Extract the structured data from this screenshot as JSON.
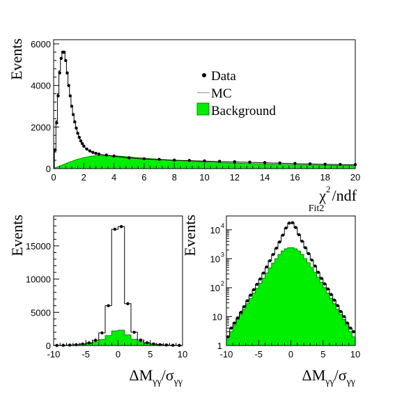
{
  "colors": {
    "background_fill": "#00ee00",
    "background_edge": "#008800",
    "data_marker": "#000000",
    "mc_line": "#000000",
    "frame": "#000000"
  },
  "chart_data": [
    {
      "type": "histogram",
      "id": "chi2",
      "ylabel": "Events",
      "xlabel_main": "χ",
      "xlabel_sup": "2",
      "xlabel_rest": "/ndf",
      "xlabel_sub": "Fit2",
      "xlim": [
        0,
        20
      ],
      "ylim": [
        0,
        6200
      ],
      "yscale": "linear",
      "x_ticks": [
        0,
        2,
        4,
        6,
        8,
        10,
        12,
        14,
        16,
        18,
        20
      ],
      "x_tick_labels": [
        "0",
        "2",
        "4",
        "6",
        "8",
        "10",
        "12",
        "14",
        "16",
        "18",
        "20"
      ],
      "y_ticks": [
        0,
        2000,
        4000,
        6000
      ],
      "y_tick_labels": [
        "0",
        "2000",
        "4000",
        "6000"
      ],
      "legend": {
        "position": "top-right",
        "entries": [
          {
            "label": "Data",
            "marker": "dot"
          },
          {
            "label": "MC",
            "marker": "line"
          },
          {
            "label": "Background",
            "marker": "box"
          }
        ]
      },
      "series": [
        {
          "name": "Data",
          "kind": "points",
          "x": [
            0.1,
            0.2,
            0.3,
            0.4,
            0.5,
            0.6,
            0.7,
            0.8,
            0.9,
            1.0,
            1.1,
            1.2,
            1.3,
            1.4,
            1.5,
            1.6,
            1.7,
            1.8,
            1.9,
            2.0,
            2.2,
            2.4,
            2.6,
            2.8,
            3.0,
            3.5,
            4.0,
            5.0,
            6.0,
            7.0,
            8.0,
            9.0,
            10.0,
            11.0,
            12.0,
            13.0,
            14.0,
            15.0,
            16.0,
            17.0,
            18.0,
            19.0,
            20.0
          ],
          "y": [
            900,
            2200,
            3500,
            4600,
            5300,
            5600,
            5600,
            5200,
            4600,
            4000,
            3500,
            3000,
            2600,
            2250,
            1950,
            1700,
            1500,
            1330,
            1200,
            1080,
            940,
            850,
            780,
            730,
            700,
            650,
            600,
            520,
            470,
            440,
            410,
            390,
            370,
            350,
            330,
            310,
            290,
            270,
            250,
            230,
            210,
            200,
            190
          ]
        },
        {
          "name": "MC",
          "kind": "step",
          "x": [
            0.1,
            0.2,
            0.3,
            0.4,
            0.5,
            0.6,
            0.7,
            0.8,
            0.9,
            1.0,
            1.1,
            1.2,
            1.3,
            1.4,
            1.5,
            1.6,
            1.7,
            1.8,
            1.9,
            2.0,
            2.2,
            2.4,
            2.6,
            2.8,
            3.0,
            3.5,
            4.0,
            5.0,
            6.0,
            7.0,
            8.0,
            9.0,
            10.0,
            11.0,
            12.0,
            13.0,
            14.0,
            15.0,
            16.0,
            17.0,
            18.0,
            19.0,
            20.0
          ],
          "y": [
            950,
            2300,
            3600,
            4700,
            5350,
            5650,
            5600,
            5150,
            4550,
            3950,
            3450,
            2950,
            2550,
            2200,
            1900,
            1680,
            1480,
            1310,
            1180,
            1060,
            930,
            840,
            770,
            720,
            690,
            640,
            590,
            510,
            460,
            430,
            400,
            380,
            360,
            340,
            320,
            300,
            280,
            260,
            240,
            220,
            205,
            195,
            185
          ]
        },
        {
          "name": "Background",
          "kind": "fill",
          "x": [
            0.0,
            0.5,
            1.0,
            1.5,
            2.0,
            2.5,
            3.0,
            3.5,
            4.0,
            5.0,
            6.0,
            7.0,
            8.0,
            9.0,
            10.0,
            11.0,
            12.0,
            13.0,
            14.0,
            15.0,
            16.0,
            17.0,
            18.0,
            19.0,
            20.0
          ],
          "y": [
            0,
            150,
            300,
            430,
            530,
            600,
            630,
            640,
            620,
            560,
            500,
            450,
            400,
            360,
            320,
            290,
            260,
            240,
            220,
            200,
            185,
            170,
            160,
            150,
            140
          ]
        }
      ]
    },
    {
      "type": "histogram",
      "id": "dm-linear",
      "ylabel": "Events",
      "xlabel_main": "ΔM",
      "xlabel_sub": "γγ",
      "xlabel_mid": "/σ",
      "xlabel_sub2": "γγ",
      "xlim": [
        -10,
        10
      ],
      "ylim": [
        0,
        19500
      ],
      "yscale": "linear",
      "x_ticks": [
        -10,
        -5,
        0,
        5,
        10
      ],
      "x_tick_labels": [
        "-10",
        "-5",
        "0",
        "5",
        "10"
      ],
      "y_ticks": [
        0,
        5000,
        10000,
        15000
      ],
      "y_tick_labels": [
        "0",
        "5000",
        "10000",
        "15000"
      ],
      "series": [
        {
          "name": "Data",
          "kind": "points",
          "x": [
            -9.5,
            -8.5,
            -7.5,
            -6.5,
            -5.5,
            -4.5,
            -3.5,
            -2.5,
            -1.5,
            -0.5,
            0.5,
            1.5,
            2.5,
            3.5,
            4.5,
            5.5,
            6.5,
            7.5,
            8.5,
            9.5
          ],
          "y": [
            20,
            40,
            70,
            130,
            230,
            400,
            800,
            1900,
            6000,
            17500,
            17900,
            6300,
            2000,
            820,
            420,
            240,
            140,
            80,
            45,
            25
          ]
        },
        {
          "name": "MC",
          "kind": "step",
          "x": [
            -9.5,
            -8.5,
            -7.5,
            -6.5,
            -5.5,
            -4.5,
            -3.5,
            -2.5,
            -1.5,
            -0.5,
            0.5,
            1.5,
            2.5,
            3.5,
            4.5,
            5.5,
            6.5,
            7.5,
            8.5,
            9.5
          ],
          "y": [
            20,
            40,
            70,
            130,
            230,
            400,
            800,
            1900,
            6000,
            17500,
            17900,
            6300,
            2000,
            820,
            420,
            240,
            140,
            80,
            45,
            25
          ]
        },
        {
          "name": "Background",
          "kind": "fill",
          "x": [
            -9.5,
            -8.5,
            -7.5,
            -6.5,
            -5.5,
            -4.5,
            -3.5,
            -2.5,
            -1.5,
            -0.5,
            0.5,
            1.5,
            2.5,
            3.5,
            4.5,
            5.5,
            6.5,
            7.5,
            8.5,
            9.5
          ],
          "y": [
            15,
            30,
            60,
            110,
            190,
            330,
            560,
            900,
            1500,
            2200,
            2300,
            1600,
            950,
            580,
            340,
            200,
            120,
            65,
            35,
            20
          ]
        }
      ]
    },
    {
      "type": "histogram",
      "id": "dm-log",
      "ylabel": "Events",
      "xlabel_main": "ΔM",
      "xlabel_sub": "γγ",
      "xlabel_mid": "/σ",
      "xlabel_sub2": "γγ",
      "xlim": [
        -10,
        10
      ],
      "ylim": [
        1,
        30000
      ],
      "yscale": "log",
      "x_ticks": [
        -10,
        -5,
        0,
        5,
        10
      ],
      "x_tick_labels": [
        "-10",
        "-5",
        "0",
        "5",
        "10"
      ],
      "y_ticks": [
        1,
        10,
        100,
        1000,
        10000
      ],
      "y_tick_bases": [
        "1",
        "10",
        "10",
        "10",
        "10"
      ],
      "y_tick_exps": [
        "",
        "",
        "2",
        "3",
        "4"
      ],
      "series": [
        {
          "name": "Data",
          "kind": "points",
          "x": [
            -9.75,
            -9.25,
            -8.75,
            -8.25,
            -7.75,
            -7.25,
            -6.75,
            -6.25,
            -5.75,
            -5.25,
            -4.75,
            -4.25,
            -3.75,
            -3.25,
            -2.75,
            -2.25,
            -1.75,
            -1.25,
            -0.75,
            -0.25,
            0.25,
            0.75,
            1.25,
            1.75,
            2.25,
            2.75,
            3.25,
            3.75,
            4.25,
            4.75,
            5.25,
            5.75,
            6.25,
            6.75,
            7.25,
            7.75,
            8.25,
            8.75,
            9.25,
            9.75
          ],
          "y": [
            2,
            4,
            6,
            9,
            14,
            22,
            35,
            55,
            85,
            130,
            200,
            320,
            520,
            850,
            1400,
            2300,
            3800,
            6500,
            11500,
            17000,
            17500,
            12000,
            6800,
            4000,
            2400,
            1500,
            900,
            560,
            340,
            210,
            135,
            90,
            58,
            37,
            24,
            15,
            10,
            6,
            4,
            3
          ]
        },
        {
          "name": "MC",
          "kind": "step",
          "x": [
            -9.75,
            -9.25,
            -8.75,
            -8.25,
            -7.75,
            -7.25,
            -6.75,
            -6.25,
            -5.75,
            -5.25,
            -4.75,
            -4.25,
            -3.75,
            -3.25,
            -2.75,
            -2.25,
            -1.75,
            -1.25,
            -0.75,
            -0.25,
            0.25,
            0.75,
            1.25,
            1.75,
            2.25,
            2.75,
            3.25,
            3.75,
            4.25,
            4.75,
            5.25,
            5.75,
            6.25,
            6.75,
            7.25,
            7.75,
            8.25,
            8.75,
            9.25,
            9.75
          ],
          "y": [
            2,
            4,
            6,
            9,
            14,
            22,
            35,
            55,
            85,
            130,
            200,
            320,
            520,
            850,
            1400,
            2300,
            3800,
            6500,
            11500,
            17000,
            17500,
            12000,
            6800,
            4000,
            2400,
            1500,
            900,
            560,
            340,
            210,
            135,
            90,
            58,
            37,
            24,
            15,
            10,
            6,
            4,
            3
          ]
        },
        {
          "name": "Background",
          "kind": "fill",
          "x": [
            -9.75,
            -9.25,
            -8.75,
            -8.25,
            -7.75,
            -7.25,
            -6.75,
            -6.25,
            -5.75,
            -5.25,
            -4.75,
            -4.25,
            -3.75,
            -3.25,
            -2.75,
            -2.25,
            -1.75,
            -1.25,
            -0.75,
            -0.25,
            0.25,
            0.75,
            1.25,
            1.75,
            2.25,
            2.75,
            3.25,
            3.75,
            4.25,
            4.75,
            5.25,
            5.75,
            6.25,
            6.75,
            7.25,
            7.75,
            8.25,
            8.75,
            9.25,
            9.75
          ],
          "y": [
            2,
            3,
            5,
            8,
            12,
            18,
            28,
            42,
            65,
            95,
            140,
            210,
            320,
            480,
            700,
            1000,
            1400,
            1850,
            2200,
            2400,
            2400,
            2200,
            1850,
            1400,
            1000,
            720,
            500,
            340,
            230,
            150,
            100,
            65,
            42,
            28,
            18,
            12,
            8,
            5,
            3,
            2
          ]
        }
      ]
    }
  ]
}
